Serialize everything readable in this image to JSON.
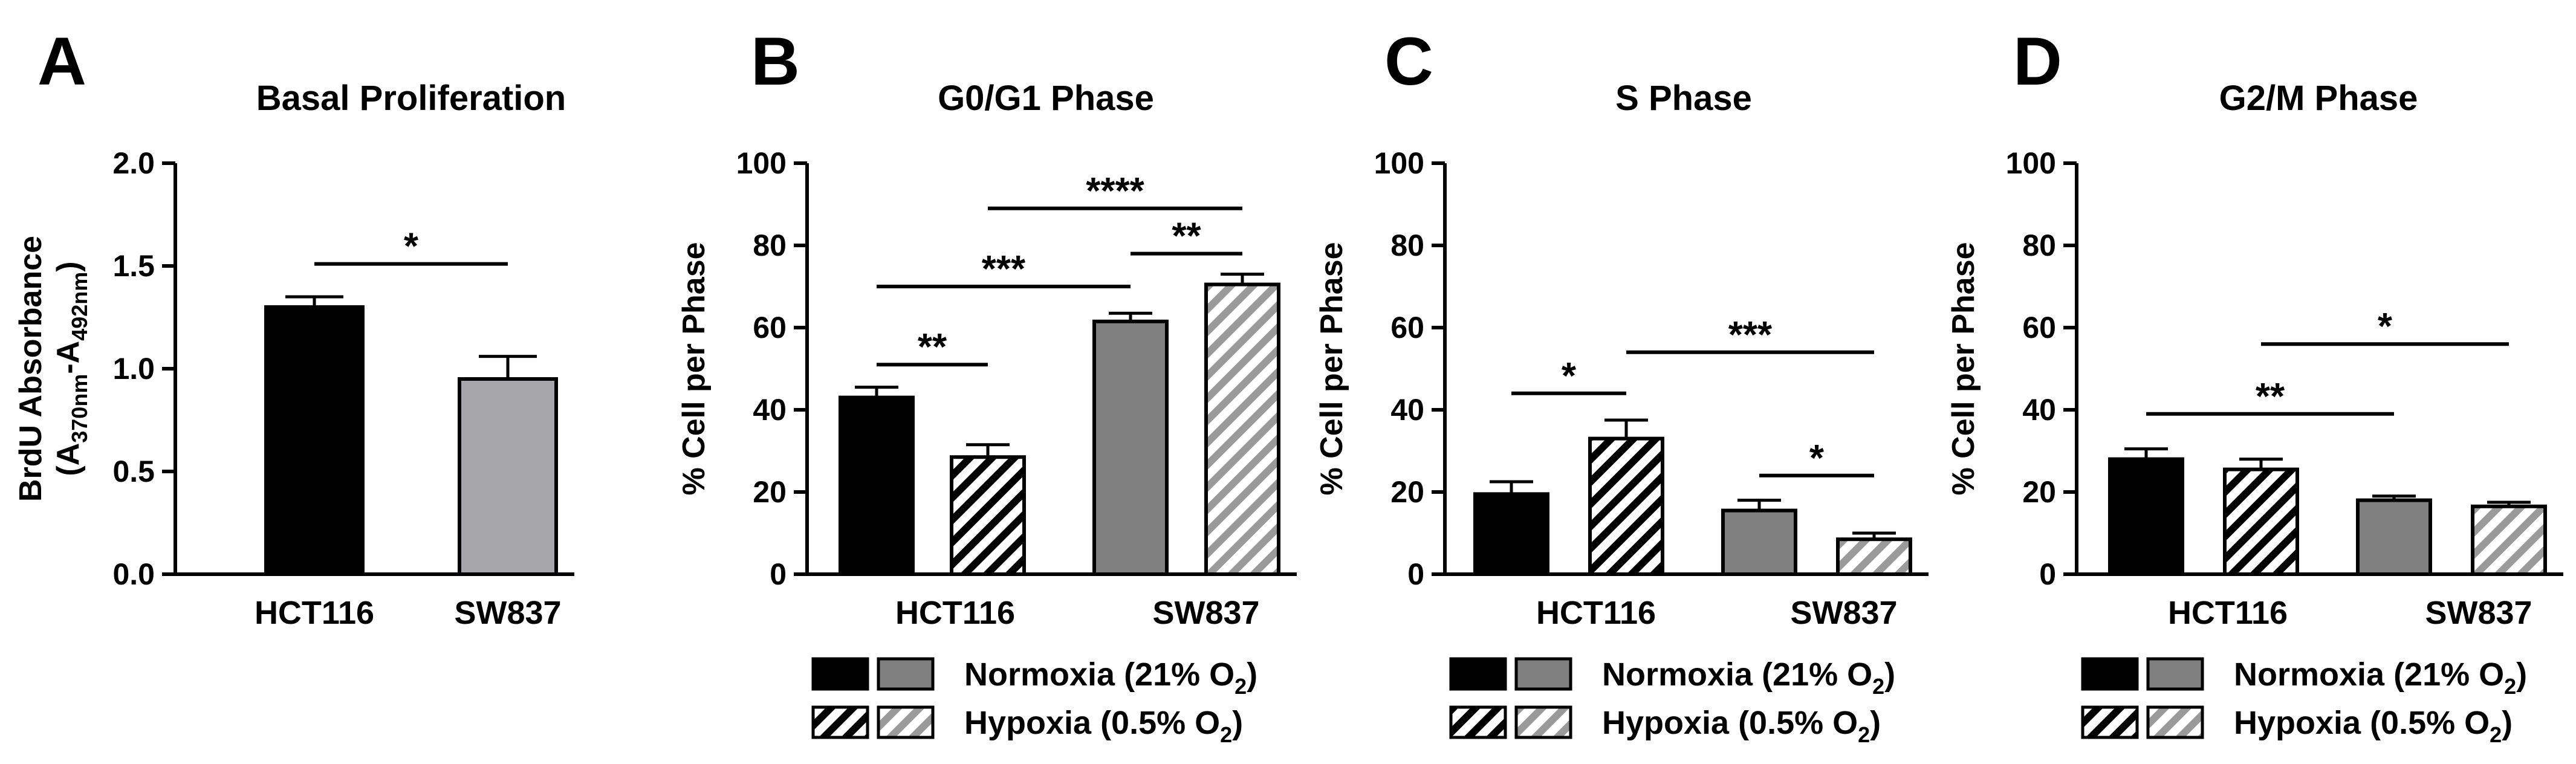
{
  "chart_data": [
    {
      "panel": "A",
      "type": "bar",
      "title": "Basal Proliferation",
      "ylabel_line1": "BrdU Absorbance",
      "ylabel_line2": "(A370nm-A492nm)",
      "ylabel_parts": [
        {
          "text": "(A",
          "sub": false
        },
        {
          "text": "370nm",
          "sub": true
        },
        {
          "text": "-A",
          "sub": false
        },
        {
          "text": "492nm",
          "sub": true
        },
        {
          "text": ")",
          "sub": false
        }
      ],
      "ylim": [
        0,
        2.0
      ],
      "yticks": [
        "0.0",
        "0.5",
        "1.0",
        "1.5",
        "2.0"
      ],
      "categories": [
        "HCT116",
        "SW837"
      ],
      "bars": [
        {
          "category": "HCT116",
          "value": 1.3,
          "error": 0.05,
          "fill": "black"
        },
        {
          "category": "SW837",
          "value": 0.95,
          "error": 0.11,
          "fill": "lightgray"
        }
      ],
      "significance": [
        {
          "from": 0,
          "to": 1,
          "y": 1.51,
          "label": "*"
        }
      ]
    },
    {
      "panel": "B",
      "type": "bar",
      "title": "G0/G1 Phase",
      "ylabel": "% Cell per Phase",
      "ylim": [
        0,
        100
      ],
      "yticks": [
        "0",
        "20",
        "40",
        "60",
        "80",
        "100"
      ],
      "categories": [
        "HCT116",
        "SW837"
      ],
      "series": [
        {
          "name": "HCT116 Normoxia (21% O2)",
          "value": 43,
          "error": 2.5,
          "fill": "black"
        },
        {
          "name": "HCT116 Hypoxia (0.5% O2)",
          "value": 28.5,
          "error": 3,
          "fill": "hatch-black"
        },
        {
          "name": "SW837 Normoxia (21% O2)",
          "value": 61.5,
          "error": 2,
          "fill": "gray"
        },
        {
          "name": "SW837 Hypoxia (0.5% O2)",
          "value": 70.5,
          "error": 2.5,
          "fill": "hatch-gray"
        }
      ],
      "significance": [
        {
          "from": 0,
          "to": 1,
          "y": 51,
          "label": "**"
        },
        {
          "from": 0,
          "to": 2,
          "y": 70,
          "label": "***"
        },
        {
          "from": 2,
          "to": 3,
          "y": 78,
          "label": "**"
        },
        {
          "from": 1,
          "to": 3,
          "y": 89,
          "label": "****"
        }
      ]
    },
    {
      "panel": "C",
      "type": "bar",
      "title": "S Phase",
      "ylabel": "% Cell per Phase",
      "ylim": [
        0,
        100
      ],
      "yticks": [
        "0",
        "20",
        "40",
        "60",
        "80",
        "100"
      ],
      "categories": [
        "HCT116",
        "SW837"
      ],
      "series": [
        {
          "name": "HCT116 Normoxia (21% O2)",
          "value": 19.5,
          "error": 3,
          "fill": "black"
        },
        {
          "name": "HCT116 Hypoxia (0.5% O2)",
          "value": 33,
          "error": 4.5,
          "fill": "hatch-black"
        },
        {
          "name": "SW837 Normoxia (21% O2)",
          "value": 15.5,
          "error": 2.5,
          "fill": "gray"
        },
        {
          "name": "SW837 Hypoxia (0.5% O2)",
          "value": 8.5,
          "error": 1.5,
          "fill": "hatch-gray"
        }
      ],
      "significance": [
        {
          "from": 0,
          "to": 1,
          "y": 44,
          "label": "*"
        },
        {
          "from": 1,
          "to": 3,
          "y": 54,
          "label": "***"
        },
        {
          "from": 2,
          "to": 3,
          "y": 24,
          "label": "*"
        }
      ]
    },
    {
      "panel": "D",
      "type": "bar",
      "title": "G2/M Phase",
      "ylabel": "% Cell per Phase",
      "ylim": [
        0,
        100
      ],
      "yticks": [
        "0",
        "20",
        "40",
        "60",
        "80",
        "100"
      ],
      "categories": [
        "HCT116",
        "SW837"
      ],
      "series": [
        {
          "name": "HCT116 Normoxia (21% O2)",
          "value": 28,
          "error": 2.5,
          "fill": "black"
        },
        {
          "name": "HCT116 Hypoxia (0.5% O2)",
          "value": 25.5,
          "error": 2.5,
          "fill": "hatch-black"
        },
        {
          "name": "SW837 Normoxia (21% O2)",
          "value": 18,
          "error": 1,
          "fill": "gray"
        },
        {
          "name": "SW837 Hypoxia (0.5% O2)",
          "value": 16.5,
          "error": 1,
          "fill": "hatch-gray"
        }
      ],
      "significance": [
        {
          "from": 0,
          "to": 2,
          "y": 39,
          "label": "**"
        },
        {
          "from": 1,
          "to": 3,
          "y": 56,
          "label": "*"
        }
      ]
    }
  ],
  "legend": {
    "normoxia_text": "Normoxia (21% O2)",
    "normoxia_parts": [
      {
        "text": "Normoxia (21% O",
        "sub": false
      },
      {
        "text": "2",
        "sub": true
      },
      {
        "text": ")",
        "sub": false
      }
    ],
    "hypoxia_text": "Hypoxia (0.5% O2)",
    "hypoxia_parts": [
      {
        "text": "Hypoxia (0.5% O",
        "sub": false
      },
      {
        "text": "2",
        "sub": true
      },
      {
        "text": ")",
        "sub": false
      }
    ]
  },
  "colors": {
    "black": "#000000",
    "gray": "#808080",
    "lightgray": "#a7a7ab",
    "hatch_gray": "#9a9a9a",
    "white": "#ffffff"
  }
}
